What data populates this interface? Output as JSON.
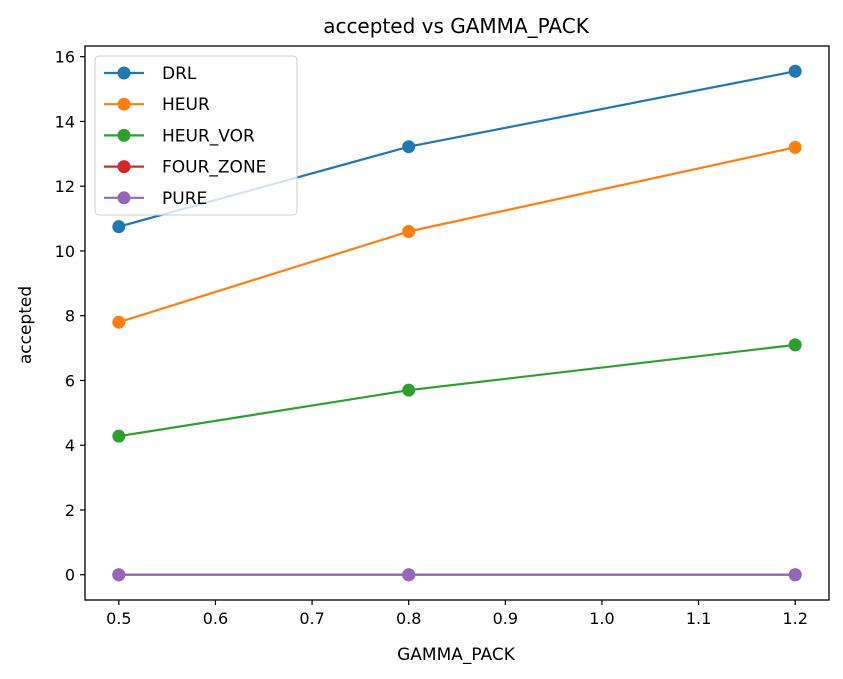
{
  "chart_data": {
    "type": "line",
    "title": "accepted vs GAMMA_PACK",
    "xlabel": "GAMMA_PACK",
    "ylabel": "accepted",
    "x": [
      0.5,
      0.8,
      1.2
    ],
    "xlim": [
      0.465,
      1.235
    ],
    "ylim": [
      -0.78,
      16.33
    ],
    "xticks": [
      0.5,
      0.6,
      0.7,
      0.8,
      0.9,
      1.0,
      1.1,
      1.2
    ],
    "xtick_labels": [
      "0.5",
      "0.6",
      "0.7",
      "0.8",
      "0.9",
      "1.0",
      "1.1",
      "1.2"
    ],
    "yticks": [
      0,
      2,
      4,
      6,
      8,
      10,
      12,
      14,
      16
    ],
    "ytick_labels": [
      "0",
      "2",
      "4",
      "6",
      "8",
      "10",
      "12",
      "14",
      "16"
    ],
    "grid": false,
    "legend_position": "top-left",
    "series": [
      {
        "name": "DRL",
        "color": "#1f77b4",
        "values": [
          10.75,
          13.22,
          15.55
        ]
      },
      {
        "name": "HEUR",
        "color": "#ff7f0e",
        "values": [
          7.8,
          10.6,
          13.2
        ]
      },
      {
        "name": "HEUR_VOR",
        "color": "#2ca02c",
        "values": [
          4.28,
          5.7,
          7.1
        ]
      },
      {
        "name": "FOUR_ZONE",
        "color": "#d62728",
        "values": [
          0,
          0,
          0
        ]
      },
      {
        "name": "PURE",
        "color": "#9467bd",
        "values": [
          0,
          0,
          0
        ]
      }
    ]
  }
}
